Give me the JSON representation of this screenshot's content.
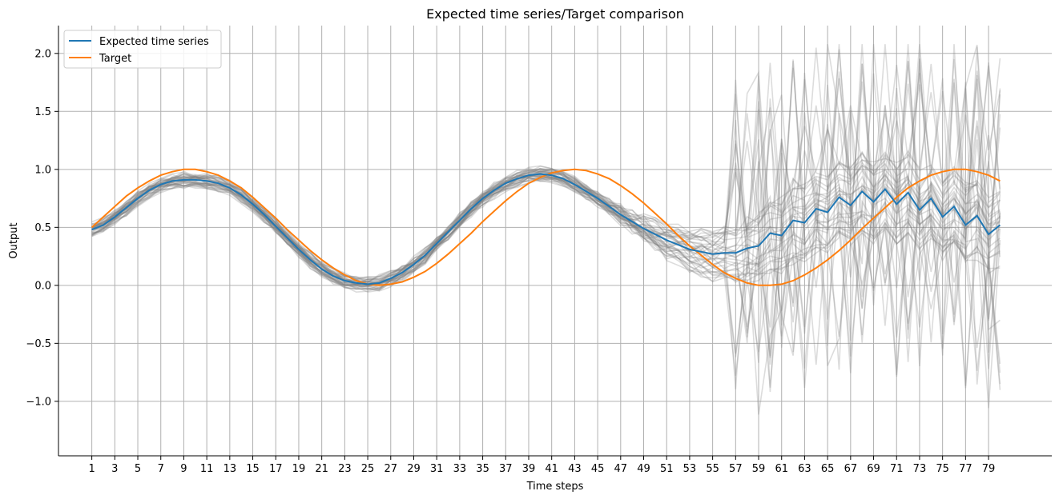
{
  "chart_data": {
    "type": "line",
    "title": "Expected time series/Target comparison",
    "xlabel": "Time steps",
    "ylabel": "Output",
    "xlim": [
      -1.9,
      84.5
    ],
    "ylim": [
      -1.47,
      2.24
    ],
    "x_ticks": [
      "1",
      "3",
      "5",
      "7",
      "9",
      "11",
      "13",
      "15",
      "17",
      "19",
      "21",
      "23",
      "25",
      "27",
      "29",
      "31",
      "33",
      "35",
      "37",
      "39",
      "41",
      "43",
      "45",
      "47",
      "49",
      "51",
      "53",
      "55",
      "57",
      "59",
      "61",
      "63",
      "65",
      "67",
      "69",
      "71",
      "73",
      "75",
      "77",
      "79"
    ],
    "y_ticks": [
      -1.0,
      -0.5,
      0.0,
      0.5,
      1.0,
      1.5,
      2.0
    ],
    "y_tick_labels": [
      "−1.0",
      "−0.5",
      "0.0",
      "0.5",
      "1.0",
      "1.5",
      "2.0"
    ],
    "grid": true,
    "legend_position": "top-left",
    "x": [
      1,
      2,
      3,
      4,
      5,
      6,
      7,
      8,
      9,
      10,
      11,
      12,
      13,
      14,
      15,
      16,
      17,
      18,
      19,
      20,
      21,
      22,
      23,
      24,
      25,
      26,
      27,
      28,
      29,
      30,
      31,
      32,
      33,
      34,
      35,
      36,
      37,
      38,
      39,
      40,
      41,
      42,
      43,
      44,
      45,
      46,
      47,
      48,
      49,
      50,
      51,
      52,
      53,
      54,
      55,
      56,
      57,
      58,
      59,
      60,
      61,
      62,
      63,
      64,
      65,
      66,
      67,
      68,
      69,
      70,
      71,
      72,
      73,
      74,
      75,
      76,
      77,
      78,
      79,
      80
    ],
    "series": [
      {
        "name": "Expected time series",
        "color": "#1f77b4",
        "values": [
          0.48,
          0.52,
          0.59,
          0.67,
          0.75,
          0.82,
          0.87,
          0.9,
          0.91,
          0.91,
          0.9,
          0.88,
          0.84,
          0.78,
          0.7,
          0.61,
          0.51,
          0.41,
          0.31,
          0.22,
          0.14,
          0.08,
          0.04,
          0.02,
          0.01,
          0.02,
          0.06,
          0.11,
          0.18,
          0.26,
          0.36,
          0.46,
          0.56,
          0.66,
          0.75,
          0.82,
          0.88,
          0.92,
          0.95,
          0.96,
          0.95,
          0.92,
          0.87,
          0.81,
          0.75,
          0.68,
          0.61,
          0.55,
          0.49,
          0.44,
          0.39,
          0.35,
          0.31,
          0.29,
          0.27,
          0.28,
          0.28,
          0.32,
          0.34,
          0.45,
          0.43,
          0.56,
          0.54,
          0.66,
          0.63,
          0.76,
          0.69,
          0.81,
          0.72,
          0.83,
          0.7,
          0.8,
          0.65,
          0.75,
          0.59,
          0.68,
          0.52,
          0.6,
          0.44,
          0.52
        ]
      },
      {
        "name": "Target",
        "color": "#ff7f0e",
        "values": [
          0.5,
          0.59,
          0.68,
          0.77,
          0.84,
          0.9,
          0.95,
          0.98,
          1.0,
          1.0,
          0.98,
          0.95,
          0.9,
          0.84,
          0.76,
          0.67,
          0.58,
          0.48,
          0.39,
          0.3,
          0.22,
          0.15,
          0.09,
          0.04,
          0.01,
          0.0,
          0.01,
          0.03,
          0.07,
          0.12,
          0.19,
          0.27,
          0.36,
          0.45,
          0.55,
          0.64,
          0.73,
          0.81,
          0.88,
          0.93,
          0.97,
          0.99,
          1.0,
          0.99,
          0.96,
          0.92,
          0.86,
          0.79,
          0.71,
          0.62,
          0.53,
          0.43,
          0.34,
          0.26,
          0.18,
          0.11,
          0.06,
          0.02,
          0.0,
          0.0,
          0.01,
          0.04,
          0.09,
          0.15,
          0.22,
          0.3,
          0.39,
          0.49,
          0.58,
          0.67,
          0.76,
          0.84,
          0.9,
          0.95,
          0.98,
          1.0,
          1.0,
          0.98,
          0.95,
          0.9
        ]
      }
    ],
    "background_samples": {
      "count": 40,
      "color": "#808080",
      "opacity": 0.28
    }
  }
}
